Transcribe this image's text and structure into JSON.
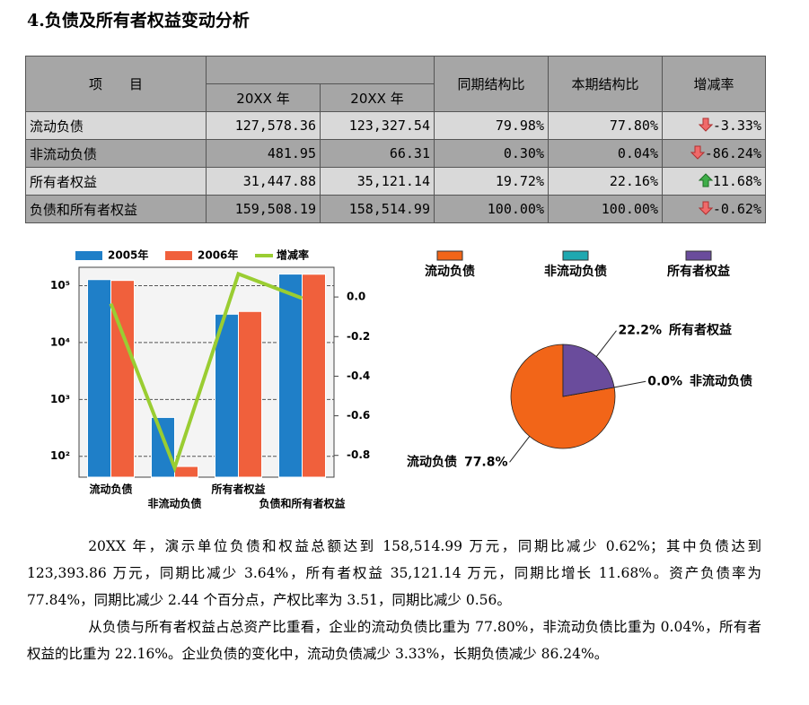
{
  "heading": "4.负债及所有者权益变动分析",
  "table": {
    "header": [
      "项　　目",
      "20XX 年",
      "20XX 年",
      "同期结构比",
      "本期结构比",
      "增减率"
    ],
    "rows": [
      [
        "流动负债",
        "127,578.36",
        "123,327.54",
        "79.98%",
        "77.80%",
        "-3.33%"
      ],
      [
        "非流动负债",
        "481.95",
        "66.31",
        "0.30%",
        "0.04%",
        "-86.24%"
      ],
      [
        "所有者权益",
        "31,447.88",
        "35,121.14",
        "19.72%",
        "22.16%",
        "11.68%"
      ],
      [
        "负债和所有者权益",
        "159,508.19",
        "158,514.99",
        "100.00%",
        "100.00%",
        "-0.62%"
      ]
    ]
  },
  "chart_data": [
    {
      "type": "bar",
      "categories": [
        "流动负债",
        "非流动负债",
        "所有者权益",
        "负债和所有者权益"
      ],
      "log_scale": true,
      "grid": true,
      "ylim": [
        43,
        210000
      ],
      "yticks": [
        {
          "value": 100,
          "label": "10²"
        },
        {
          "value": 1000,
          "label": "10³"
        },
        {
          "value": 10000,
          "label": "10⁴"
        },
        {
          "value": 100000,
          "label": "10⁵"
        }
      ],
      "y2lim": [
        -0.91,
        0.15
      ],
      "y2ticks": [
        {
          "value": 0,
          "label": "0.0"
        },
        -0.2,
        -0.4,
        -0.6,
        -0.8
      ],
      "series": [
        {
          "name": "2005年",
          "color": "#1f7fc8",
          "values": [
            127578.36,
            481.95,
            31447.88,
            159508.19
          ]
        },
        {
          "name": "2006年",
          "color": "#f0603c",
          "values": [
            123327.54,
            66.31,
            35121.14,
            158514.99
          ]
        },
        {
          "name": "增减率",
          "color": "#9acd32",
          "type": "line",
          "axis": "y2",
          "values": [
            -0.0333,
            -0.8624,
            0.1168,
            -0.0062
          ]
        }
      ]
    },
    {
      "type": "pie",
      "categories": [
        "流动负债",
        "非流动负债",
        "所有者权益"
      ],
      "values": [
        77.8,
        0.0,
        22.2
      ],
      "value_labels": [
        "77.8%",
        "0.0%",
        "22.2%"
      ],
      "colors": [
        "#f26518",
        "#1fa8b0",
        "#6a4c9c"
      ]
    }
  ],
  "paragraphs": [
    "20XX 年，演示单位负债和权益总额达到 158,514.99 万元，同期比减少 0.62%；其中负债达到 123,393.86 万元，同期比减少 3.64%，所有者权益 35,121.14 万元，同期比增长 11.68%。资产负债率为 77.84%，同期比减少 2.44 个百分点，产权比率为 3.51，同期比减少 0.56。",
    "从负债与所有者权益占总资产比重看，企业的流动负债比重为 77.80%，非流动负债比重为 0.04%，所有者权益的比重为 22.16%。企业负债的变化中，流动负债减少 3.33%，长期负债减少 86.24%。"
  ]
}
